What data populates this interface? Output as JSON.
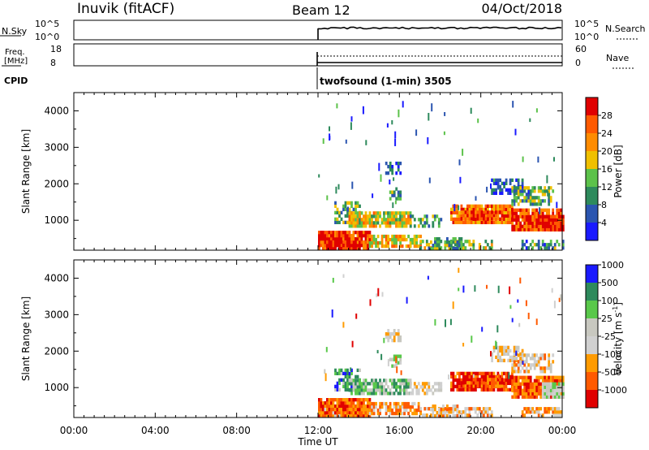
{
  "header": {
    "station": "Inuvik (fitACF)",
    "beam": "Beam 12",
    "date": "04/Oct/2018"
  },
  "mini_panels": {
    "nsky_label": "N.Sky",
    "nsky_ticks": [
      "10^5",
      "10^0"
    ],
    "nsearch_label": "N.Search",
    "freq_label_1": "Freq.",
    "freq_label_2": "[MHz]",
    "freq_ticks": [
      "18",
      "8"
    ],
    "nave_ticks": [
      "60",
      "0"
    ],
    "nave_label": "Nave",
    "cpid_label": "CPID",
    "cpid_value": "twofsound (1-min) 3505"
  },
  "colors": {
    "power_scale": [
      "#1a1aff",
      "#2b55b0",
      "#2e8a5c",
      "#5cc24a",
      "#f0c000",
      "#ff8c00",
      "#ff5a00",
      "#e00000"
    ],
    "velocity_scale": [
      "#e00000",
      "#ff5a00",
      "#ff9b00",
      "#d0d0d0",
      "#c8c8c0",
      "#59c84a",
      "#2e8a5c",
      "#1a1aff"
    ]
  },
  "chart_data": [
    {
      "type": "heatmap",
      "title": "Power",
      "ylabel": "Slant Range [km]",
      "xlabel": "Time UT",
      "x_ticks": [
        "00:00",
        "04:00",
        "08:00",
        "12:00",
        "16:00",
        "20:00",
        "00:00"
      ],
      "y_ticks": [
        1000,
        2000,
        3000,
        4000
      ],
      "ylim": [
        180,
        4500
      ],
      "colorbar_label": "Power [dB]",
      "colorbar_ticks": [
        4,
        8,
        12,
        16,
        20,
        24,
        28
      ],
      "data_start": "12:00"
    },
    {
      "type": "heatmap",
      "title": "Velocity",
      "ylabel": "Slant Range [km]",
      "xlabel": "Time UT",
      "x_ticks": [
        "00:00",
        "04:00",
        "08:00",
        "12:00",
        "16:00",
        "20:00",
        "00:00"
      ],
      "y_ticks": [
        1000,
        2000,
        3000,
        4000
      ],
      "ylim": [
        180,
        4500
      ],
      "colorbar_label": "Velocity [m s",
      "colorbar_label_sup": "-1",
      "colorbar_label_end": "]",
      "colorbar_ticks": [
        -1000,
        -500,
        -100,
        -25,
        25,
        100,
        500,
        1000
      ],
      "data_start": "12:00"
    }
  ]
}
